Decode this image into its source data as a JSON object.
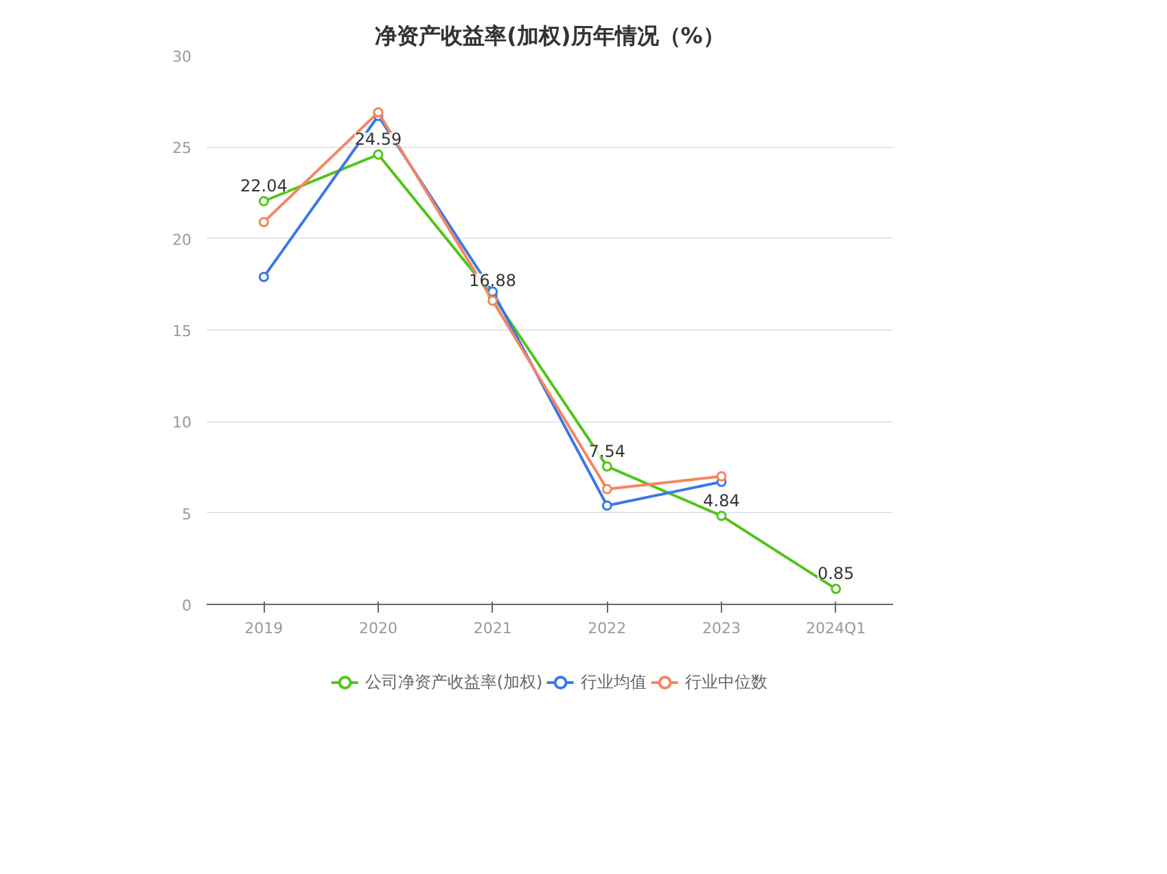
{
  "chart_data": {
    "type": "line",
    "title": "净资产收益率(加权)历年情况（%）",
    "categories": [
      "2019",
      "2020",
      "2021",
      "2022",
      "2023",
      "2024Q1"
    ],
    "series": [
      {
        "name": "公司净资产收益率(加权)",
        "color": "#52c41a",
        "values": [
          22.04,
          24.59,
          16.88,
          7.54,
          4.84,
          0.85
        ],
        "value_labels": [
          "22.04",
          "24.59",
          "16.88",
          "7.54",
          "4.84",
          "0.85"
        ]
      },
      {
        "name": "行业均值",
        "color": "#3b78e7",
        "values": [
          17.9,
          26.7,
          17.1,
          5.4,
          6.7,
          null
        ]
      },
      {
        "name": "行业中位数",
        "color": "#f7845e",
        "values": [
          20.9,
          26.9,
          16.6,
          6.3,
          7.0,
          null
        ]
      }
    ],
    "ylim": [
      0,
      30
    ],
    "yticks": [
      0,
      5,
      10,
      15,
      20,
      25,
      30
    ],
    "grid": "y",
    "legend": "bottom",
    "marker": "circle",
    "line_style": "solid"
  }
}
